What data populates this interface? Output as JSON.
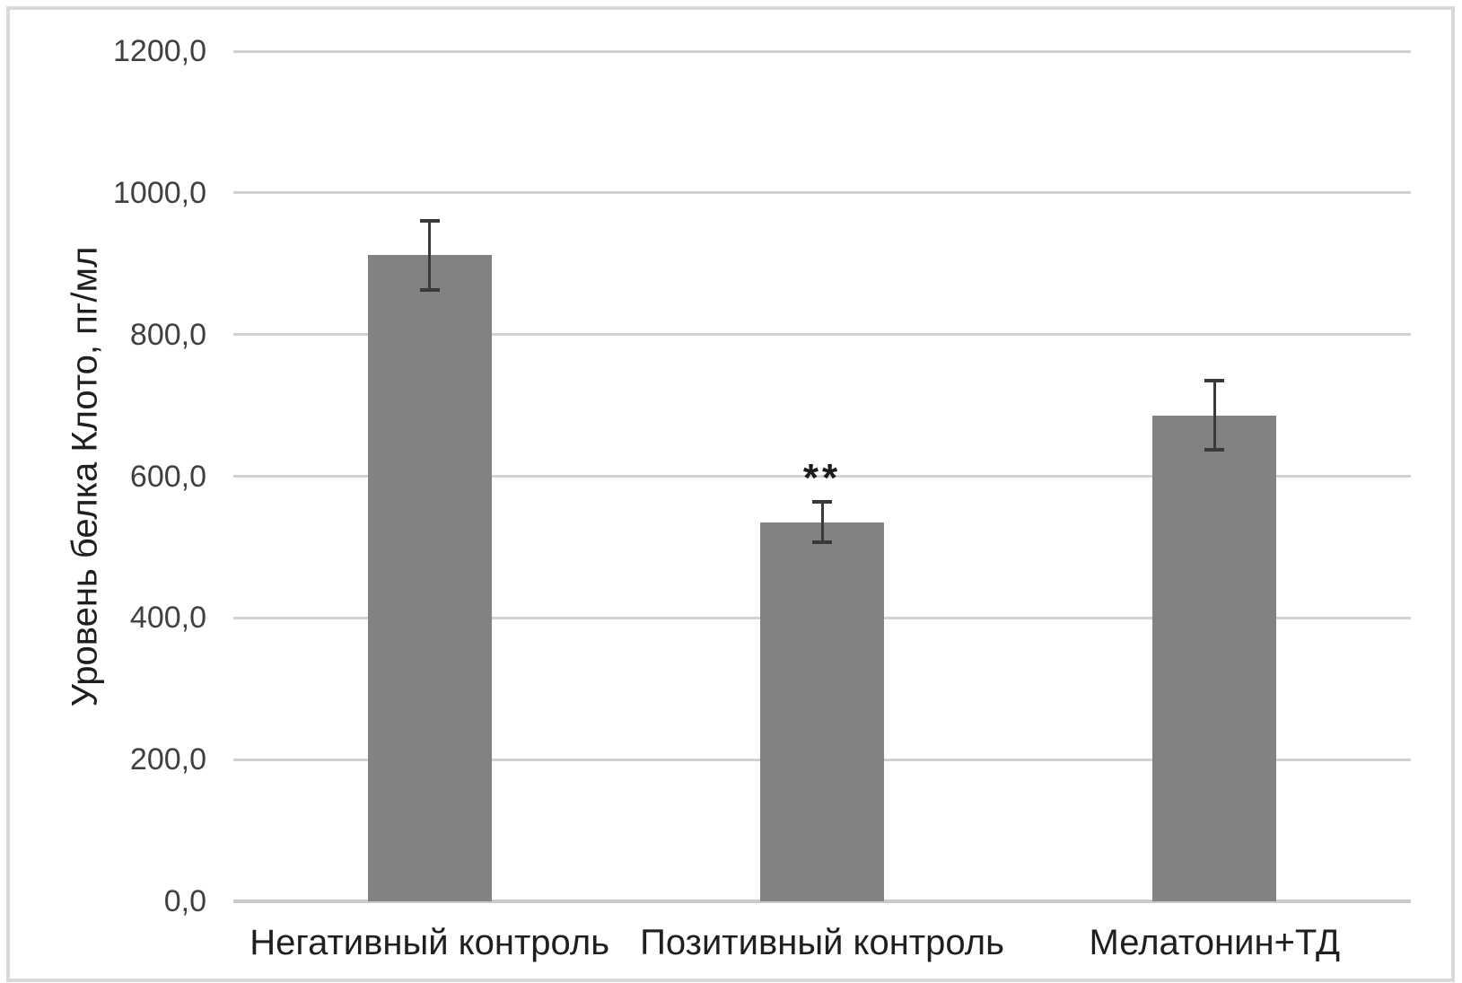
{
  "chart_data": {
    "type": "bar",
    "title": "",
    "xlabel": "",
    "ylabel": "Уровень белка Клото, пг/мл",
    "categories": [
      "Негативный контроль",
      "Позитивный контроль",
      "Мелатонин+ТД"
    ],
    "series": [
      {
        "name": "Уровень белка Клото, пг/мл",
        "values": [
          912,
          535,
          686
        ],
        "errors": [
          51,
          31,
          51
        ]
      }
    ],
    "annotations": [
      {
        "category_index": 1,
        "text": "**"
      }
    ],
    "ylim": [
      0,
      1200
    ],
    "ytick_step": 200,
    "ytick_labels": [
      "0,0",
      "200,0",
      "400,0",
      "600,0",
      "800,0",
      "1000,0",
      "1200,0"
    ],
    "grid": true,
    "legend_visible": false,
    "colors": {
      "bar_fill": "#828282",
      "error_bar": "#3a3a3a",
      "gridline": "#d2d2d2",
      "axis_line": "#c9c9c9",
      "tick_text": "#404040",
      "label_text": "#1f1f1f",
      "frame_border": "#d9d9d9"
    }
  }
}
